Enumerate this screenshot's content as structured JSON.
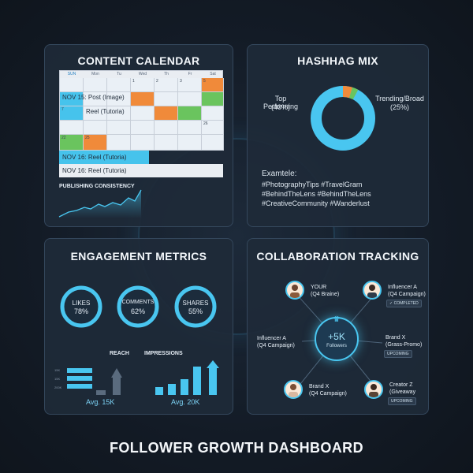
{
  "page_title": "FOLLOWER GROWTH DASHBOARD",
  "calendar": {
    "title": "CONTENT CALENDAR",
    "days": [
      "SUN",
      "Mon",
      "Tu",
      "Wed",
      "Th",
      "Fr",
      "Sat"
    ],
    "row1_dates": [
      "",
      "",
      "",
      "1",
      "2",
      "3",
      "5"
    ],
    "event1": "NOV 15: Post (Image)",
    "row3_dates": [
      "7",
      "",
      "",
      "",
      "",
      "",
      ""
    ],
    "event2": "Reel (Tutoria)",
    "row4_dates": [
      "",
      "",
      "",
      "",
      "",
      "",
      "26"
    ],
    "row5_dates": [
      "22",
      "25",
      "",
      "",
      "",
      "",
      ""
    ],
    "event3": "NOV 16: Reel (Tutoria)",
    "event4": "NOV 16: Reel (Tutoria)",
    "consistency_label": "PUBLISHING CONSISTENCY"
  },
  "hashtag": {
    "title": "HASHHAG MIX",
    "left_label": "Top Performing",
    "left_pct": "(40%)",
    "right_label": "Trending/Broad",
    "right_pct": "(25%)",
    "example_title": "Examtele:",
    "lines": [
      "#PhotographyTips #TravelGram",
      "#BehindTheLens #BehindTheLens",
      "#CreativeCommunity #Wanderlust"
    ]
  },
  "engagement": {
    "title": "ENGAGEMENT METRICS",
    "rings": [
      {
        "label": "LIKES",
        "value": "78%"
      },
      {
        "label": "COMMENTS",
        "value": "62%"
      },
      {
        "label": "SHARES",
        "value": "55%"
      }
    ],
    "reach_label": "REACH",
    "impressions_label": "IMPRESSIONS",
    "tiny_labels": [
      "15K",
      "15K",
      "200K"
    ],
    "reach_avg": "Avg. 15K",
    "impressions_avg": "Avg. 20K"
  },
  "collab": {
    "title": "COLLABORATION TRACKING",
    "hub_value": "+5K",
    "hub_label": "Followers",
    "you_line1": "YOUR",
    "you_line2": "(Q4 Braine)",
    "inf_a_line1": "Influencer A",
    "inf_a_line2": "(Q4 Campaign)",
    "completed": "✓ COMPLETED",
    "left_inf_line1": "Influencer A",
    "left_inf_line2": "(Q4 Campaign)",
    "brand_x_line1": "Brand X",
    "brand_x_line2": "(Grass-Promo)",
    "upcoming1": "UPCOMING",
    "brand_x2_line1": "Brand X",
    "brand_x2_line2": "(Q4 Campaign)",
    "creator_line1": "Creator Z",
    "creator_line2": "(Giveaway",
    "upcoming2": "UPCOMING"
  },
  "colors": {
    "accent": "#49c6f0",
    "orange": "#f08a3a",
    "green": "#6ac45e",
    "panel": "#1e2a38"
  }
}
